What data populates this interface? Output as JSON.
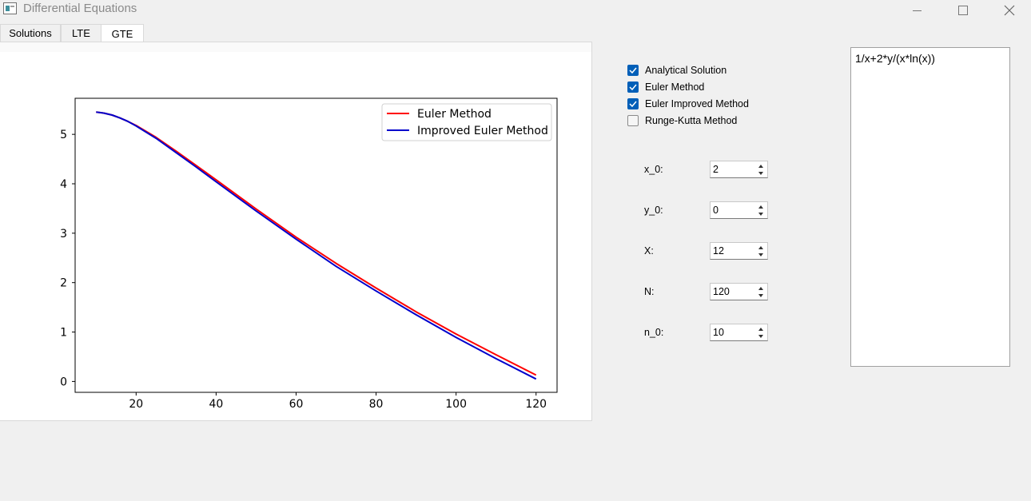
{
  "window": {
    "title": "Differential Equations"
  },
  "tabs": [
    {
      "label": "Solutions"
    },
    {
      "label": "LTE"
    },
    {
      "label": "GTE",
      "active": true
    }
  ],
  "checkboxes": [
    {
      "label": "Analytical Solution",
      "checked": true
    },
    {
      "label": "Euler Method",
      "checked": true
    },
    {
      "label": "Euler Improved Method",
      "checked": true
    },
    {
      "label": "Runge-Kutta Method",
      "checked": false
    }
  ],
  "params": [
    {
      "label": "x_0:",
      "value": "2"
    },
    {
      "label": "y_0:",
      "value": "0"
    },
    {
      "label": "X:",
      "value": "12"
    },
    {
      "label": "N:",
      "value": "120"
    },
    {
      "label": "n_0:",
      "value": "10"
    }
  ],
  "equation": "1/x+2*y/(x*ln(x))",
  "colors": {
    "accent": "#005fb8",
    "euler": "#ff0000",
    "improved": "#0000cc"
  },
  "chart_data": {
    "type": "line",
    "title": "",
    "xlabel": "",
    "ylabel": "",
    "xlim": [
      4.75,
      125.25
    ],
    "ylim": [
      -0.22,
      5.73
    ],
    "xticks": [
      20,
      40,
      60,
      80,
      100,
      120
    ],
    "yticks": [
      0,
      1,
      2,
      3,
      4,
      5
    ],
    "legend_position": "top-right",
    "grid": false,
    "series": [
      {
        "name": "Euler Method",
        "color": "#ff0000",
        "x": [
          10,
          12,
          14,
          16,
          18,
          20,
          25,
          30,
          35,
          40,
          50,
          60,
          70,
          80,
          90,
          100,
          110,
          120
        ],
        "y": [
          5.45,
          5.43,
          5.39,
          5.33,
          5.26,
          5.18,
          4.94,
          4.66,
          4.37,
          4.08,
          3.49,
          2.92,
          2.39,
          1.89,
          1.41,
          0.96,
          0.54,
          0.13
        ]
      },
      {
        "name": "Improved Euler Method",
        "color": "#0000cc",
        "x": [
          10,
          12,
          14,
          16,
          18,
          20,
          25,
          30,
          35,
          40,
          50,
          60,
          70,
          80,
          90,
          100,
          110,
          120
        ],
        "y": [
          5.45,
          5.43,
          5.39,
          5.33,
          5.26,
          5.17,
          4.92,
          4.63,
          4.34,
          4.04,
          3.45,
          2.88,
          2.33,
          1.83,
          1.35,
          0.89,
          0.46,
          0.05
        ]
      }
    ]
  }
}
